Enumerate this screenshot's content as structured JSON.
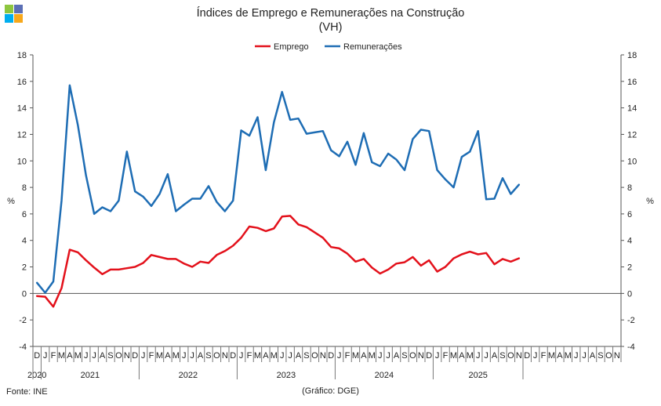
{
  "logo": {
    "colors": [
      "#8DC63F",
      "#5B6FB5",
      "#00AEEF",
      "#F7A81B"
    ]
  },
  "title": {
    "line1": "Índices de Emprego e Remunerações na Construção",
    "line2": "(VH)"
  },
  "footer": {
    "source": "Fonte: INE",
    "graph": "(Gráfico: DGE)"
  },
  "chart_data": {
    "type": "line",
    "ylabel": "%",
    "ylabel_right": "%",
    "ylim": [
      -4,
      18
    ],
    "yticks": [
      -4,
      -2,
      0,
      2,
      4,
      6,
      8,
      10,
      12,
      14,
      16,
      18
    ],
    "grid": false,
    "legend": "top-center",
    "month_labels": [
      "D",
      "J",
      "F",
      "M",
      "A",
      "M",
      "J",
      "J",
      "A",
      "S",
      "O",
      "N",
      "D",
      "J",
      "F",
      "M",
      "A",
      "M",
      "J",
      "J",
      "A",
      "S",
      "O",
      "N",
      "D",
      "J",
      "F",
      "M",
      "A",
      "M",
      "J",
      "J",
      "A",
      "S",
      "O",
      "N",
      "D",
      "J",
      "F",
      "M",
      "A",
      "M",
      "J",
      "J",
      "A",
      "S",
      "O",
      "N",
      "D",
      "J",
      "F",
      "M",
      "A",
      "M",
      "J",
      "J",
      "A",
      "S",
      "O",
      "N",
      "D",
      "J",
      "F",
      "M",
      "A",
      "M",
      "J",
      "J",
      "A",
      "S",
      "O",
      "N"
    ],
    "years": [
      {
        "label": "2020",
        "start": 0,
        "end": 0
      },
      {
        "label": "2021",
        "start": 1,
        "end": 12
      },
      {
        "label": "2022",
        "start": 13,
        "end": 24
      },
      {
        "label": "2023",
        "start": 25,
        "end": 36
      },
      {
        "label": "2024",
        "start": 37,
        "end": 48
      },
      {
        "label": "2025",
        "start": 49,
        "end": 59
      }
    ],
    "series": [
      {
        "name": "Emprego",
        "color": "#E3111B",
        "values": [
          -0.2,
          -0.25,
          -1.0,
          0.4,
          3.3,
          3.1,
          2.5,
          1.95,
          1.45,
          1.8,
          1.8,
          1.9,
          2.0,
          2.3,
          2.9,
          2.75,
          2.6,
          2.6,
          2.25,
          2.0,
          2.4,
          2.3,
          2.9,
          3.2,
          3.6,
          4.2,
          5.05,
          4.95,
          4.7,
          4.9,
          5.8,
          5.85,
          5.2,
          5.0,
          4.6,
          4.2,
          3.5,
          3.4,
          3.0,
          2.4,
          2.6,
          1.95,
          1.5,
          1.8,
          2.25,
          2.35,
          2.75,
          2.1,
          2.5,
          1.65,
          2.0,
          2.65,
          2.95,
          3.15,
          2.95,
          3.05,
          2.2,
          2.6,
          2.4,
          2.65
        ]
      },
      {
        "name": "Remunerações",
        "color": "#1E6DB4",
        "values": [
          0.8,
          0.05,
          0.9,
          7.0,
          15.7,
          12.7,
          8.9,
          6.0,
          6.5,
          6.2,
          7.0,
          10.7,
          7.7,
          7.3,
          6.6,
          7.5,
          9.0,
          6.2,
          6.7,
          7.15,
          7.15,
          8.1,
          6.9,
          6.2,
          7.0,
          12.3,
          11.9,
          13.3,
          9.3,
          12.9,
          15.2,
          13.1,
          13.2,
          12.05,
          12.15,
          12.25,
          10.8,
          10.35,
          11.45,
          9.7,
          12.1,
          9.9,
          9.6,
          10.55,
          10.1,
          9.3,
          11.65,
          12.35,
          12.25,
          9.3,
          8.6,
          8.0,
          10.3,
          10.7,
          12.25,
          7.1,
          7.15,
          8.7,
          7.5,
          8.2
        ]
      }
    ]
  }
}
